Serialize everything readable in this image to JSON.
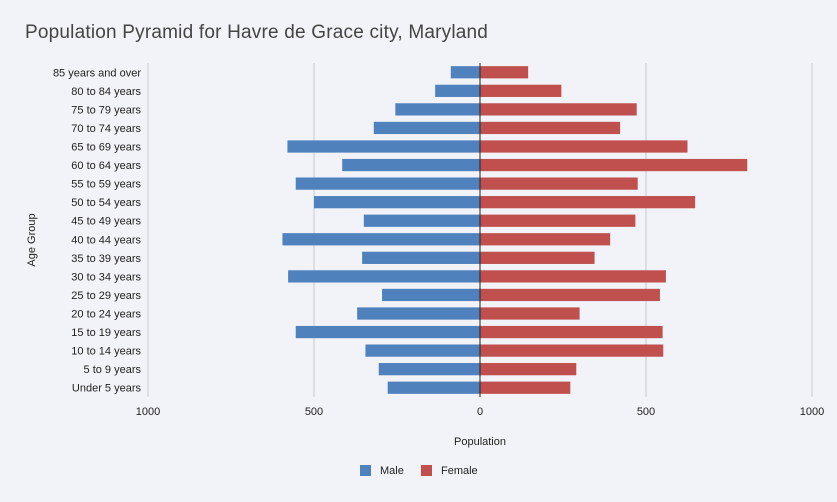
{
  "chart_data": {
    "type": "bar",
    "orientation": "horizontal",
    "title": "Population Pyramid for Havre de Grace city, Maryland",
    "xlabel": "Population",
    "ylabel": "Age Group",
    "xlim": [
      -1000,
      1000
    ],
    "xticks": [
      -1000,
      -500,
      0,
      500,
      1000
    ],
    "xtick_labels": [
      "1000",
      "500",
      "0",
      "500",
      "1000"
    ],
    "grid": true,
    "legend_position": "bottom",
    "categories": [
      "85 years and over",
      "80 to 84 years",
      "75 to 79 years",
      "70 to 74 years",
      "65 to 69 years",
      "60 to 64 years",
      "55 to 59 years",
      "50 to 54 years",
      "45 to 49 years",
      "40 to 44 years",
      "35 to 39 years",
      "30 to 34 years",
      "25 to 29 years",
      "20 to 24 years",
      "15 to 19 years",
      "10 to 14 years",
      "5 to 9 years",
      "Under 5 years"
    ],
    "series": [
      {
        "name": "Male",
        "color": "#4f81bd",
        "values": [
          88,
          135,
          255,
          320,
          580,
          415,
          555,
          500,
          350,
          595,
          355,
          578,
          295,
          370,
          555,
          345,
          305,
          278
        ]
      },
      {
        "name": "Female",
        "color": "#c0504d",
        "values": [
          145,
          245,
          472,
          422,
          625,
          805,
          475,
          648,
          468,
          392,
          345,
          560,
          542,
          300,
          550,
          552,
          290,
          272
        ]
      }
    ]
  }
}
